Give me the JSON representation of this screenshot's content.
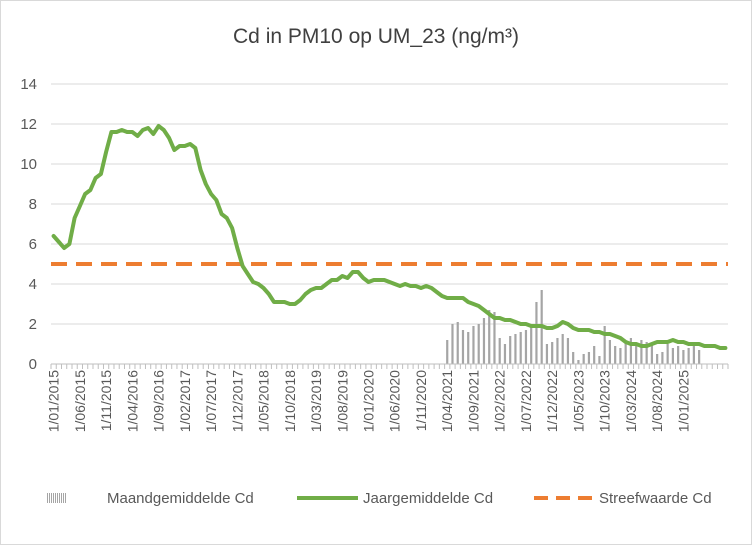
{
  "chart_data": {
    "type": "line",
    "title": "Cd in PM10 op UM_23 (ng/m³)",
    "xlabel": "",
    "ylabel": "",
    "ylim": [
      0,
      14
    ],
    "yticks": [
      0,
      2,
      4,
      6,
      8,
      10,
      12,
      14
    ],
    "grid": true,
    "legend_position": "bottom",
    "x_tick_labels": [
      "1/01/2015",
      "1/06/2015",
      "1/11/2015",
      "1/04/2016",
      "1/09/2016",
      "1/02/2017",
      "1/07/2017",
      "1/12/2017",
      "1/05/2018",
      "1/10/2018",
      "1/03/2019",
      "1/08/2019",
      "1/01/2020",
      "1/06/2020",
      "1/11/2020",
      "1/04/2021",
      "1/09/2021",
      "1/02/2022",
      "1/07/2022",
      "1/12/2022",
      "1/05/2023",
      "1/10/2023",
      "1/03/2024",
      "1/08/2024",
      "1/01/2025"
    ],
    "series": [
      {
        "name": "Maandgemiddelde Cd",
        "type": "bar",
        "color": "#a5a5a5",
        "start_month": "2021-04",
        "values": [
          1.2,
          2.0,
          2.1,
          1.7,
          1.6,
          1.9,
          2.0,
          2.3,
          2.7,
          2.6,
          1.3,
          1.0,
          1.4,
          1.5,
          1.6,
          1.7,
          2.0,
          3.1,
          3.7,
          1.0,
          1.1,
          1.3,
          1.5,
          1.3,
          0.6,
          0.2,
          0.5,
          0.6,
          0.9,
          0.4,
          1.9,
          1.2,
          0.9,
          0.8,
          1.1,
          1.3,
          1.0,
          1.2,
          1.1,
          1.0,
          0.5,
          0.6,
          1.0,
          0.8,
          0.9,
          0.7,
          0.8,
          0.9,
          0.7
        ]
      },
      {
        "name": "Jaargemiddelde Cd",
        "type": "line",
        "color": "#70ad47",
        "start_month": "2015-01",
        "values": [
          6.4,
          6.1,
          5.8,
          6.0,
          7.3,
          7.9,
          8.5,
          8.7,
          9.3,
          9.5,
          10.6,
          11.6,
          11.6,
          11.7,
          11.6,
          11.6,
          11.4,
          11.7,
          11.8,
          11.5,
          11.9,
          11.7,
          11.3,
          10.7,
          10.9,
          10.9,
          11.0,
          10.8,
          9.7,
          9.0,
          8.5,
          8.2,
          7.5,
          7.3,
          6.8,
          5.8,
          4.9,
          4.5,
          4.1,
          4.0,
          3.8,
          3.5,
          3.1,
          3.1,
          3.1,
          3.0,
          3.0,
          3.2,
          3.5,
          3.7,
          3.8,
          3.8,
          4.0,
          4.2,
          4.2,
          4.4,
          4.3,
          4.6,
          4.6,
          4.3,
          4.1,
          4.2,
          4.2,
          4.2,
          4.1,
          4.0,
          3.9,
          4.0,
          3.9,
          3.9,
          3.8,
          3.9,
          3.8,
          3.6,
          3.4,
          3.3,
          3.3,
          3.3,
          3.3,
          3.1,
          3.0,
          2.9,
          2.7,
          2.5,
          2.3,
          2.3,
          2.2,
          2.2,
          2.1,
          2.0,
          2.0,
          1.9,
          1.9,
          1.9,
          1.8,
          1.8,
          1.9,
          2.1,
          2.0,
          1.8,
          1.7,
          1.7,
          1.7,
          1.6,
          1.6,
          1.5,
          1.5,
          1.4,
          1.3,
          1.1,
          1.0,
          1.0,
          0.9,
          0.9,
          1.0,
          1.1,
          1.1,
          1.1,
          1.2,
          1.1,
          1.1,
          1.0,
          1.0,
          1.0,
          0.9,
          0.9,
          0.9,
          0.8,
          0.8
        ]
      },
      {
        "name": "Streefwaarde Cd",
        "type": "dashed-line",
        "color": "#ed7d31",
        "value": 5
      }
    ]
  }
}
